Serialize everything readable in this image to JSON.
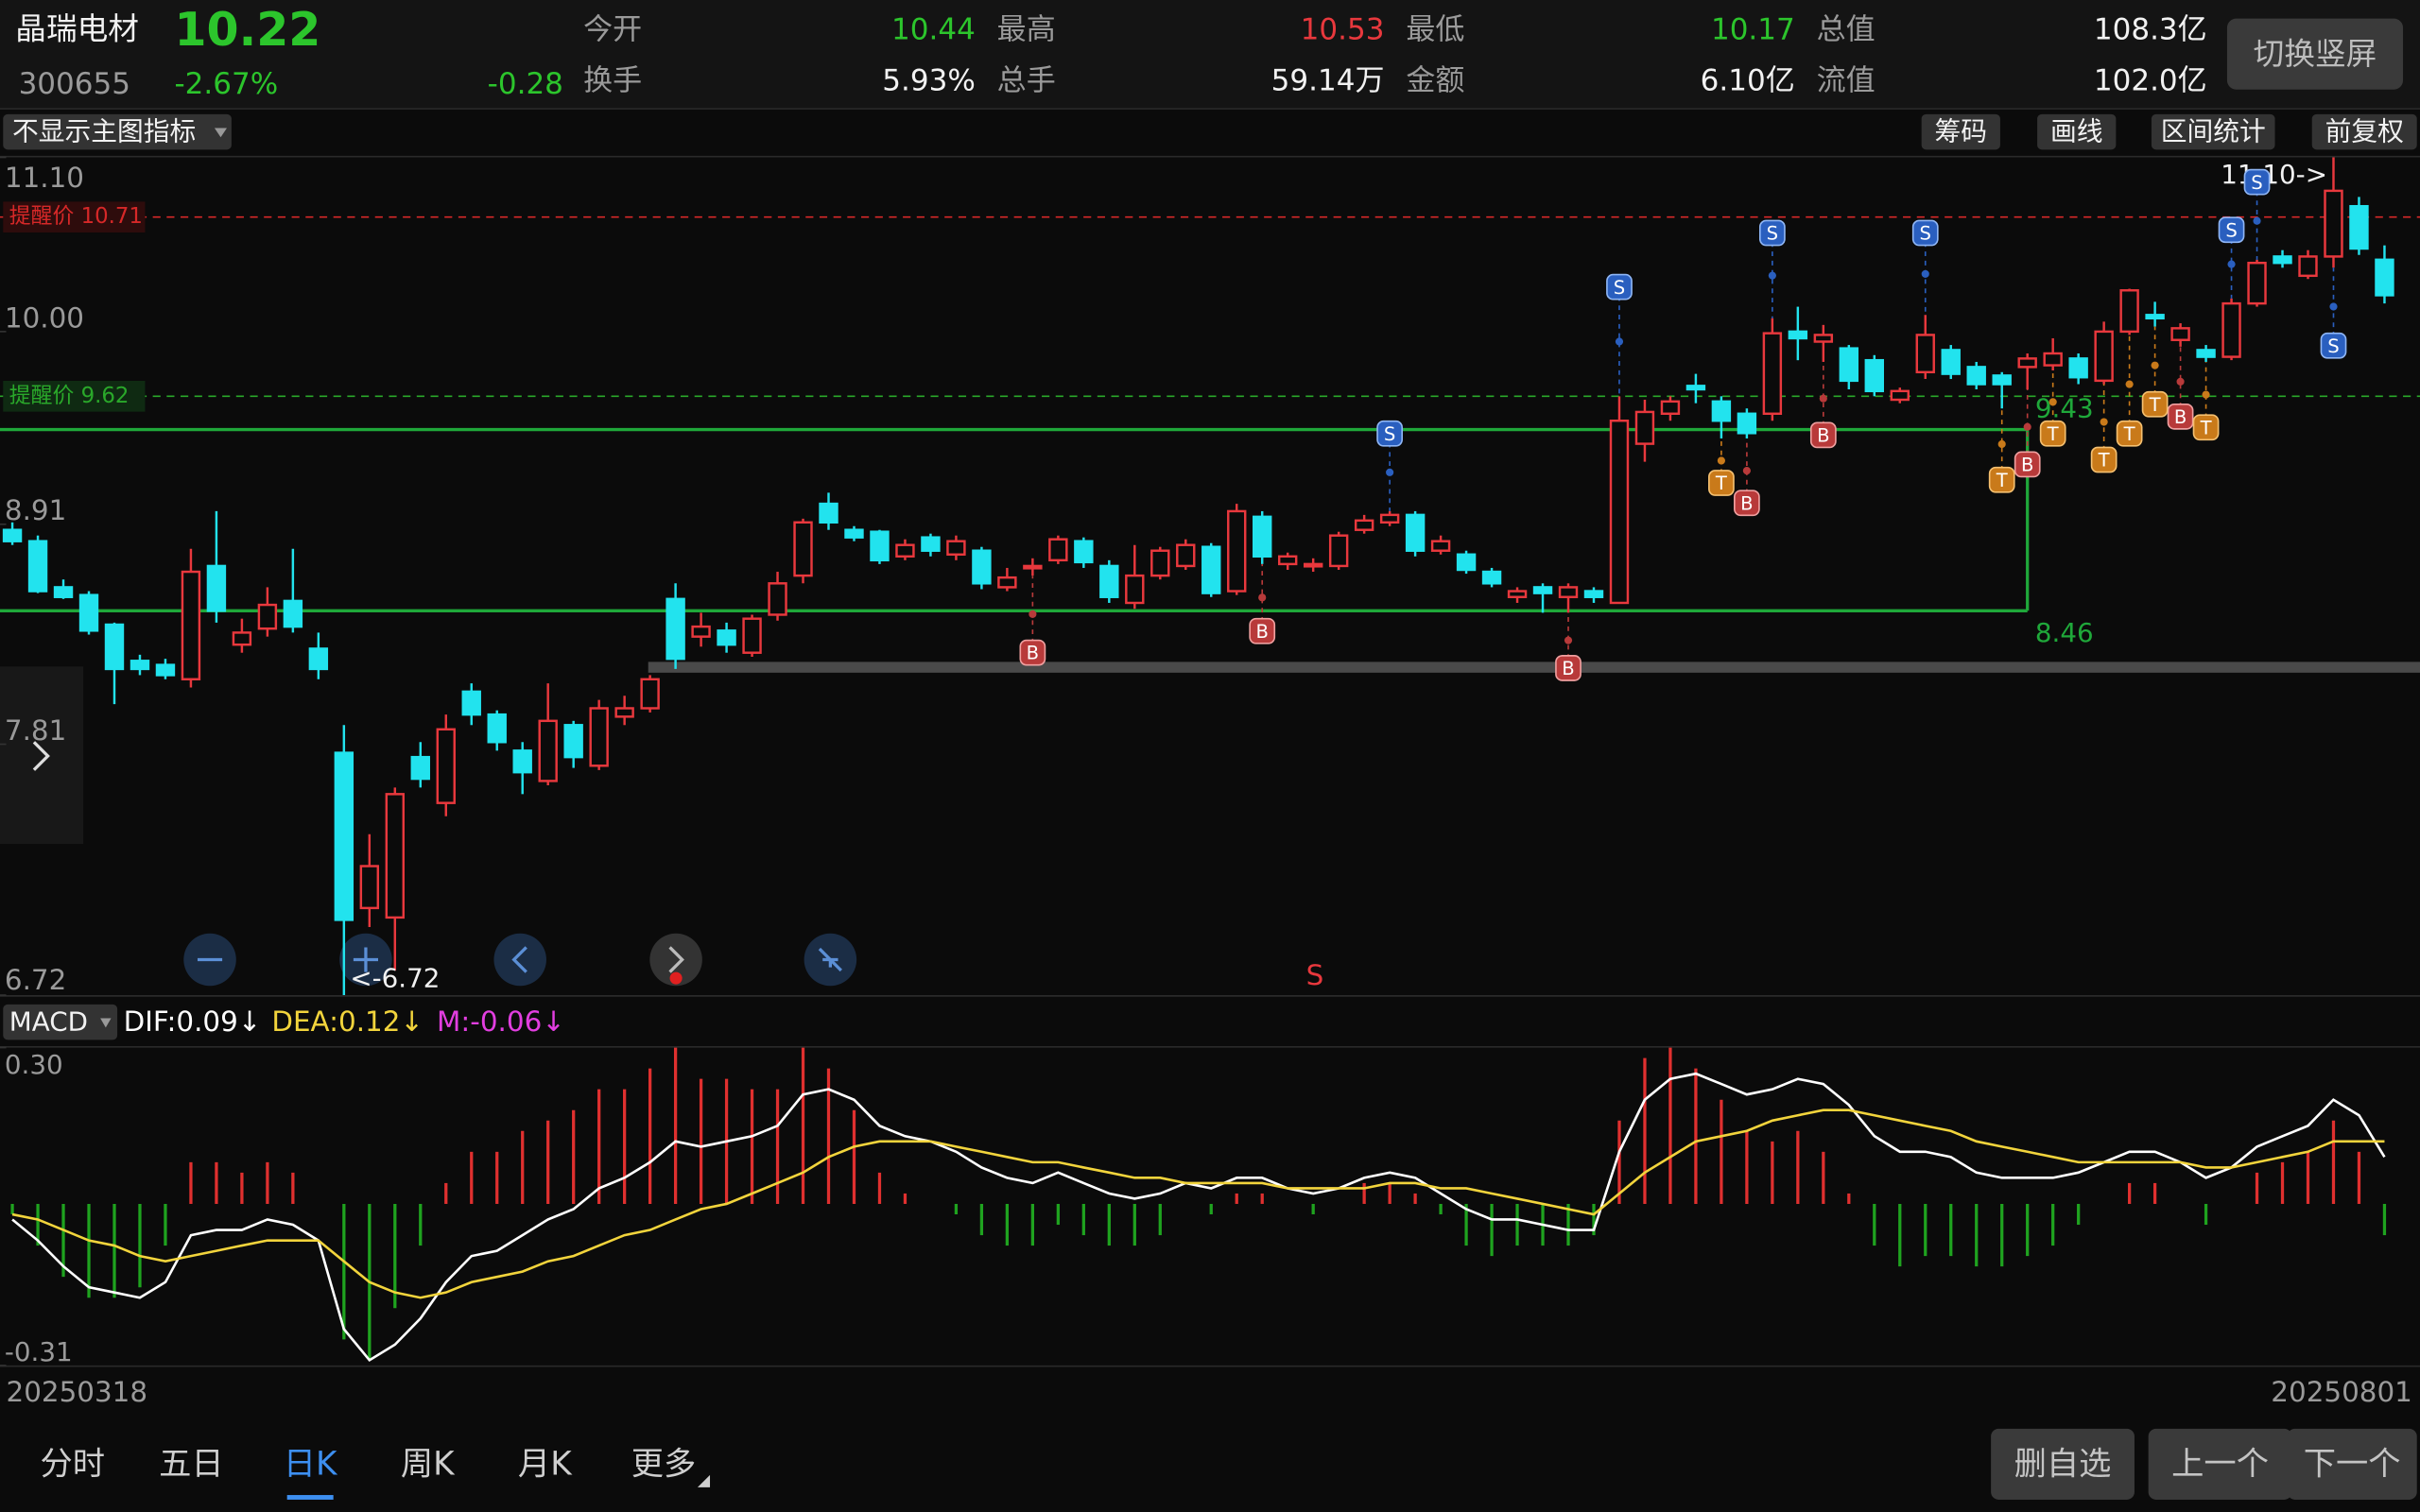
{
  "header": {
    "name": "晶瑞电材",
    "price": "10.22",
    "code": "300655",
    "change_pct": "-2.67%",
    "change": "-0.28",
    "stats": [
      {
        "label": "今开",
        "value": "10.44"
      },
      {
        "label": "最高",
        "value": "10.53"
      },
      {
        "label": "最低",
        "value": "10.17"
      },
      {
        "label": "总值",
        "value": "108.3亿"
      },
      {
        "label": "换手",
        "value": "5.93%"
      },
      {
        "label": "总手",
        "value": "59.14万"
      },
      {
        "label": "金额",
        "value": "6.10亿"
      },
      {
        "label": "流值",
        "value": "102.0亿"
      }
    ],
    "button": "切换竖屏"
  },
  "toolbar": {
    "indicator_menu": "不显示主图指标",
    "buttons": [
      "筹码",
      "画线",
      "区间统计",
      "前复权"
    ]
  },
  "chart_data": [
    {
      "type": "candlestick",
      "categories": [
        "20250318",
        null,
        null,
        null,
        null,
        null,
        null,
        null,
        null,
        null,
        null,
        null,
        null,
        null,
        null,
        null,
        null,
        null,
        null,
        null,
        null,
        null,
        null,
        null,
        null,
        null,
        null,
        null,
        null,
        null,
        null,
        null,
        null,
        null,
        null,
        null,
        null,
        null,
        null,
        null,
        null,
        null,
        null,
        null,
        null,
        null,
        null,
        null,
        null,
        null,
        null,
        null,
        null,
        null,
        null,
        null,
        null,
        null,
        null,
        null,
        null,
        null,
        null,
        null,
        null,
        null,
        null,
        null,
        null,
        null,
        null,
        null,
        null,
        null,
        null,
        null,
        null,
        null,
        null,
        null,
        null,
        null,
        null,
        null,
        null,
        null,
        null,
        null,
        null,
        null,
        null,
        null,
        null,
        "20250801"
      ],
      "open": [
        8.88,
        8.82,
        8.58,
        8.54,
        8.39,
        8.21,
        8.19,
        8.12,
        8.69,
        8.29,
        8.37,
        8.51,
        8.27,
        7.77,
        7.08,
        7.04,
        7.75,
        7.54,
        8.06,
        7.95,
        7.78,
        7.64,
        7.9,
        7.71,
        7.94,
        7.98,
        8.52,
        8.33,
        8.36,
        8.25,
        8.44,
        8.64,
        9.02,
        8.88,
        8.87,
        8.74,
        8.84,
        8.75,
        8.77,
        8.58,
        8.68,
        8.72,
        8.82,
        8.69,
        8.5,
        8.64,
        8.69,
        8.79,
        8.56,
        8.95,
        8.7,
        8.69,
        8.69,
        8.88,
        8.92,
        8.96,
        8.77,
        8.75,
        8.66,
        8.53,
        8.58,
        8.53,
        8.56,
        8.5,
        9.35,
        9.52,
        9.68,
        9.59,
        9.52,
        9.52,
        10.0,
        9.94,
        9.9,
        9.83,
        9.6,
        9.76,
        9.89,
        9.79,
        9.74,
        9.79,
        9.8,
        9.84,
        9.71,
        10.0,
        10.1,
        9.95,
        9.89,
        9.85,
        10.17,
        10.46,
        10.34,
        10.46,
        10.78,
        10.44
      ],
      "high": [
        8.92,
        8.85,
        8.62,
        8.56,
        8.4,
        8.24,
        8.22,
        8.78,
        8.98,
        8.42,
        8.58,
        8.78,
        8.35,
        7.9,
        7.4,
        7.61,
        7.82,
        7.95,
        8.1,
        7.97,
        7.82,
        8.1,
        7.92,
        8.02,
        8.04,
        8.14,
        8.6,
        8.45,
        8.4,
        8.44,
        8.66,
        8.94,
        9.08,
        8.9,
        8.88,
        8.83,
        8.86,
        8.85,
        8.79,
        8.68,
        8.73,
        8.85,
        8.84,
        8.72,
        8.8,
        8.79,
        8.83,
        8.81,
        9.02,
        8.98,
        8.76,
        8.73,
        8.87,
        8.96,
        8.98,
        8.98,
        8.85,
        8.77,
        8.68,
        8.58,
        8.6,
        8.6,
        8.58,
        9.62,
        9.6,
        9.62,
        9.75,
        9.62,
        9.55,
        10.08,
        10.15,
        10.04,
        9.92,
        9.86,
        9.67,
        10.1,
        9.92,
        9.82,
        9.76,
        9.87,
        9.96,
        9.87,
        10.06,
        10.26,
        10.18,
        10.05,
        9.92,
        10.2,
        10.44,
        10.5,
        10.5,
        11.1,
        10.84,
        10.53
      ],
      "low": [
        8.8,
        8.55,
        8.52,
        8.34,
        8.0,
        8.14,
        8.12,
        8.08,
        8.4,
        8.25,
        8.33,
        8.35,
        8.12,
        6.72,
        7.0,
        6.82,
        7.61,
        7.48,
        7.9,
        7.78,
        7.58,
        7.62,
        7.7,
        7.69,
        7.9,
        7.96,
        8.17,
        8.28,
        8.25,
        8.23,
        8.41,
        8.6,
        8.88,
        8.82,
        8.7,
        8.72,
        8.74,
        8.72,
        8.57,
        8.56,
        8.64,
        8.7,
        8.68,
        8.5,
        8.47,
        8.62,
        8.67,
        8.53,
        8.54,
        8.7,
        8.67,
        8.66,
        8.67,
        8.86,
        8.9,
        8.74,
        8.75,
        8.65,
        8.58,
        8.5,
        8.45,
        8.45,
        8.5,
        8.5,
        9.25,
        9.48,
        9.58,
        9.38,
        9.38,
        9.48,
        9.83,
        9.82,
        9.66,
        9.62,
        9.58,
        9.72,
        9.72,
        9.66,
        9.55,
        9.66,
        9.77,
        9.69,
        9.69,
        9.98,
        10.03,
        9.91,
        9.82,
        9.83,
        10.15,
        10.39,
        10.32,
        10.39,
        10.47,
        10.17
      ],
      "close": [
        8.82,
        8.56,
        8.53,
        8.36,
        8.17,
        8.17,
        8.14,
        8.66,
        8.46,
        8.35,
        8.49,
        8.38,
        8.17,
        7.03,
        7.26,
        7.58,
        7.65,
        7.88,
        7.95,
        7.82,
        7.68,
        7.92,
        7.75,
        7.98,
        7.98,
        8.12,
        8.22,
        8.38,
        8.29,
        8.42,
        8.6,
        8.92,
        8.92,
        8.84,
        8.72,
        8.8,
        8.77,
        8.82,
        8.6,
        8.63,
        8.69,
        8.83,
        8.71,
        8.53,
        8.64,
        8.77,
        8.8,
        8.55,
        8.98,
        8.74,
        8.74,
        8.7,
        8.85,
        8.93,
        8.96,
        8.77,
        8.82,
        8.67,
        8.6,
        8.56,
        8.55,
        8.58,
        8.53,
        9.48,
        9.53,
        9.59,
        9.66,
        9.48,
        9.41,
        9.99,
        9.96,
        9.98,
        9.71,
        9.65,
        9.65,
        9.98,
        9.75,
        9.69,
        9.69,
        9.84,
        9.87,
        9.73,
        10.0,
        10.25,
        10.08,
        10.02,
        9.85,
        10.17,
        10.42,
        10.42,
        10.46,
        10.88,
        10.51,
        10.22
      ],
      "up_color": "#e8383d",
      "down_color": "#22e3ee",
      "ylim": [
        6.72,
        11.1
      ],
      "yticks": [
        {
          "value": 11.1,
          "label": "11.10"
        },
        {
          "value": 10,
          "label": "10.00"
        },
        8.91,
        7.81,
        6.72
      ],
      "log_scale": true,
      "grid": false,
      "reference_lines": [
        {
          "label": "提醒价 10.71",
          "value": 10.71,
          "color": "#d62828"
        },
        {
          "label": "提醒价 9.62",
          "value": 9.62,
          "color": "#2aa82a"
        }
      ],
      "range_box": {
        "high": 9.43,
        "low": 8.46,
        "color": "#1fa83a"
      },
      "max_label": "11.10->",
      "min_label": "<-6.72",
      "signals": [
        "S",
        "S",
        "S",
        "S",
        "S",
        "S",
        "S",
        "B",
        "B",
        "B",
        "B",
        "B",
        "B",
        "B",
        "T",
        "T",
        "T",
        "T",
        "T",
        "T",
        "T"
      ],
      "bottom_marker": "S"
    },
    {
      "type": "macd",
      "title": "MACD",
      "series": [
        {
          "name": "DIF:0.09↓",
          "color": "#ffffff",
          "values": [
            -0.03,
            -0.07,
            -0.12,
            -0.16,
            -0.17,
            -0.18,
            -0.15,
            -0.06,
            -0.05,
            -0.05,
            -0.03,
            -0.04,
            -0.07,
            -0.24,
            -0.3,
            -0.27,
            -0.22,
            -0.15,
            -0.1,
            -0.09,
            -0.06,
            -0.03,
            -0.01,
            0.03,
            0.05,
            0.08,
            0.12,
            0.11,
            0.12,
            0.13,
            0.15,
            0.21,
            0.22,
            0.2,
            0.15,
            0.13,
            0.12,
            0.1,
            0.07,
            0.05,
            0.04,
            0.06,
            0.04,
            0.02,
            0.01,
            0.02,
            0.04,
            0.03,
            0.05,
            0.05,
            0.03,
            0.02,
            0.03,
            0.05,
            0.06,
            0.05,
            0.02,
            -0.01,
            -0.03,
            -0.03,
            -0.04,
            -0.05,
            -0.05,
            0.1,
            0.2,
            0.24,
            0.25,
            0.23,
            0.21,
            0.22,
            0.24,
            0.23,
            0.19,
            0.13,
            0.1,
            0.1,
            0.09,
            0.06,
            0.05,
            0.05,
            0.05,
            0.06,
            0.08,
            0.1,
            0.1,
            0.08,
            0.05,
            0.07,
            0.11,
            0.13,
            0.15,
            0.2,
            0.17,
            0.09
          ]
        },
        {
          "name": "DEA:0.12↓",
          "color": "#f2d43c",
          "values": [
            -0.02,
            -0.03,
            -0.05,
            -0.07,
            -0.08,
            -0.1,
            -0.11,
            -0.1,
            -0.09,
            -0.08,
            -0.07,
            -0.07,
            -0.07,
            -0.11,
            -0.15,
            -0.17,
            -0.18,
            -0.17,
            -0.15,
            -0.14,
            -0.13,
            -0.11,
            -0.1,
            -0.08,
            -0.06,
            -0.05,
            -0.03,
            -0.01,
            0.0,
            0.02,
            0.04,
            0.06,
            0.09,
            0.11,
            0.12,
            0.12,
            0.12,
            0.11,
            0.1,
            0.09,
            0.08,
            0.08,
            0.07,
            0.06,
            0.05,
            0.05,
            0.04,
            0.04,
            0.04,
            0.04,
            0.03,
            0.03,
            0.03,
            0.03,
            0.04,
            0.04,
            0.03,
            0.03,
            0.02,
            0.01,
            0.0,
            -0.01,
            -0.02,
            0.02,
            0.06,
            0.09,
            0.12,
            0.13,
            0.14,
            0.16,
            0.17,
            0.18,
            0.18,
            0.17,
            0.16,
            0.15,
            0.14,
            0.12,
            0.11,
            0.1,
            0.09,
            0.08,
            0.08,
            0.08,
            0.08,
            0.08,
            0.07,
            0.07,
            0.08,
            0.09,
            0.1,
            0.12,
            0.12,
            0.12
          ]
        },
        {
          "name": "M:-0.06↓",
          "color": "#e23ee0",
          "up_color": "#e0302f",
          "down_color": "#1fa31f",
          "values": [
            -0.02,
            -0.08,
            -0.14,
            -0.18,
            -0.18,
            -0.16,
            -0.08,
            0.08,
            0.08,
            0.06,
            0.08,
            0.06,
            0.0,
            -0.26,
            -0.3,
            -0.2,
            -0.08,
            0.04,
            0.1,
            0.1,
            0.14,
            0.16,
            0.18,
            0.22,
            0.22,
            0.26,
            0.3,
            0.24,
            0.24,
            0.22,
            0.22,
            0.3,
            0.26,
            0.18,
            0.06,
            0.02,
            0.0,
            -0.02,
            -0.06,
            -0.08,
            -0.08,
            -0.04,
            -0.06,
            -0.08,
            -0.08,
            -0.06,
            0.0,
            -0.02,
            0.02,
            0.02,
            0.0,
            -0.02,
            0.0,
            0.04,
            0.04,
            0.02,
            -0.02,
            -0.08,
            -0.1,
            -0.08,
            -0.08,
            -0.08,
            -0.06,
            0.16,
            0.28,
            0.3,
            0.26,
            0.2,
            0.14,
            0.12,
            0.14,
            0.1,
            0.02,
            -0.08,
            -0.12,
            -0.1,
            -0.1,
            -0.12,
            -0.12,
            -0.1,
            -0.08,
            -0.04,
            0.0,
            0.04,
            0.04,
            0.0,
            -0.04,
            0.0,
            0.06,
            0.08,
            0.1,
            0.16,
            0.1,
            -0.06
          ]
        }
      ],
      "ylim": [
        -0.31,
        0.3
      ],
      "yticks": [
        {
          "value": 0.3,
          "label": "0.30"
        },
        -0.31
      ]
    }
  ],
  "footer": {
    "tabs": [
      "分时",
      "五日",
      "日K",
      "周K",
      "月K",
      "更多"
    ],
    "actions": [
      "删自选",
      "上一个",
      "下一个"
    ]
  }
}
